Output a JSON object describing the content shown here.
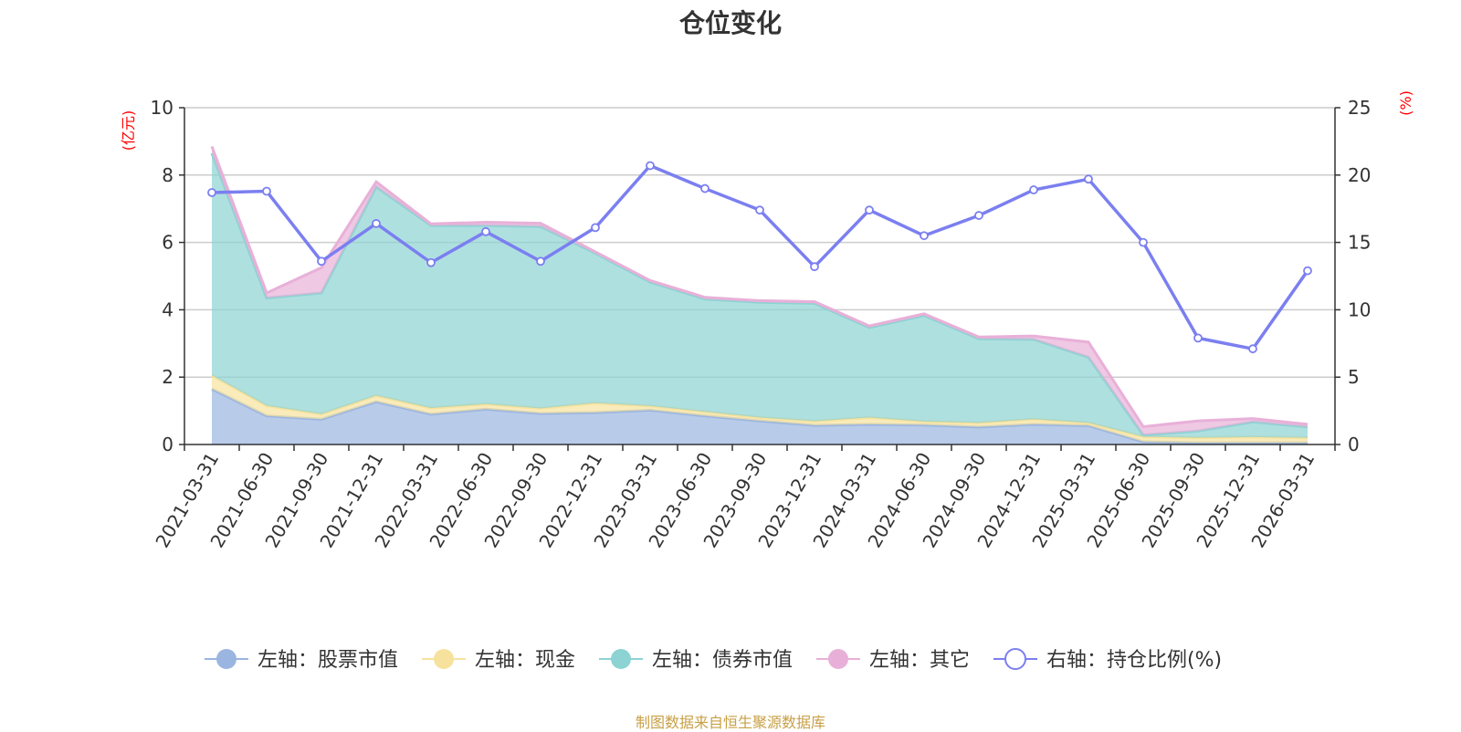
{
  "title": "仓位变化",
  "source": "制图数据来自恒生聚源数据库",
  "chart_data": {
    "type": "area",
    "title": "仓位变化",
    "left_axis": {
      "unit": "(亿元)",
      "min": 0,
      "max": 10,
      "ticks": [
        "0",
        "2",
        "4",
        "6",
        "8",
        "10"
      ]
    },
    "right_axis": {
      "unit": "(%)",
      "min": 0,
      "max": 25,
      "ticks": [
        "0",
        "5",
        "10",
        "15",
        "20",
        "25"
      ]
    },
    "categories": [
      "2021-03-31",
      "2021-06-30",
      "2021-09-30",
      "2021-12-31",
      "2022-03-31",
      "2022-06-30",
      "2022-09-30",
      "2022-12-31",
      "2023-03-31",
      "2023-06-30",
      "2023-09-30",
      "2023-12-31",
      "2024-03-31",
      "2024-06-30",
      "2024-09-30",
      "2024-12-31",
      "2025-03-31",
      "2025-06-30",
      "2025-09-30",
      "2025-12-31",
      "2026-03-31"
    ],
    "stacked_series": [
      {
        "name": "左轴：股票市值",
        "color": "#9ab5e0",
        "values": [
          1.65,
          0.85,
          0.75,
          1.27,
          0.9,
          1.05,
          0.92,
          0.95,
          1.02,
          0.85,
          0.7,
          0.57,
          0.6,
          0.58,
          0.52,
          0.6,
          0.56,
          0.08,
          0.05,
          0.05,
          0.05
        ]
      },
      {
        "name": "左轴：现金",
        "color": "#f7e29d",
        "values": [
          0.4,
          0.3,
          0.15,
          0.18,
          0.18,
          0.15,
          0.15,
          0.28,
          0.12,
          0.12,
          0.1,
          0.12,
          0.2,
          0.1,
          0.12,
          0.15,
          0.08,
          0.15,
          0.15,
          0.17,
          0.15
        ]
      },
      {
        "name": "左轴：债券市值",
        "color": "#8dd3d3",
        "values": [
          6.6,
          3.2,
          3.6,
          6.2,
          5.42,
          5.3,
          5.4,
          4.45,
          3.68,
          3.35,
          3.42,
          3.5,
          2.67,
          3.15,
          2.5,
          2.37,
          1.95,
          0.05,
          0.2,
          0.45,
          0.32
        ]
      },
      {
        "name": "左轴：其它",
        "color": "#e8b0d8",
        "values": [
          0.2,
          0.15,
          0.75,
          0.15,
          0.05,
          0.1,
          0.1,
          0.04,
          0.05,
          0.05,
          0.05,
          0.05,
          0.05,
          0.05,
          0.05,
          0.1,
          0.45,
          0.25,
          0.3,
          0.1,
          0.08
        ]
      }
    ],
    "line_series": {
      "name": "右轴：持仓比例(%)",
      "color": "#7b7ff0",
      "values": [
        18.7,
        18.8,
        13.6,
        16.4,
        13.5,
        15.8,
        13.6,
        16.1,
        20.7,
        19.0,
        17.4,
        13.2,
        17.4,
        15.5,
        17.0,
        18.9,
        19.7,
        15.0,
        7.9,
        7.1,
        12.9
      ]
    },
    "legend": [
      {
        "label": "左轴：股票市值",
        "color": "#9ab5e0",
        "kind": "area"
      },
      {
        "label": "左轴：现金",
        "color": "#f7e29d",
        "kind": "area"
      },
      {
        "label": "左轴：债券市值",
        "color": "#8dd3d3",
        "kind": "area"
      },
      {
        "label": "左轴：其它",
        "color": "#e8b0d8",
        "kind": "area"
      },
      {
        "label": "右轴：持仓比例(%)",
        "color": "#7b7ff0",
        "kind": "line"
      }
    ],
    "legend_position": "bottom",
    "grid": true
  }
}
